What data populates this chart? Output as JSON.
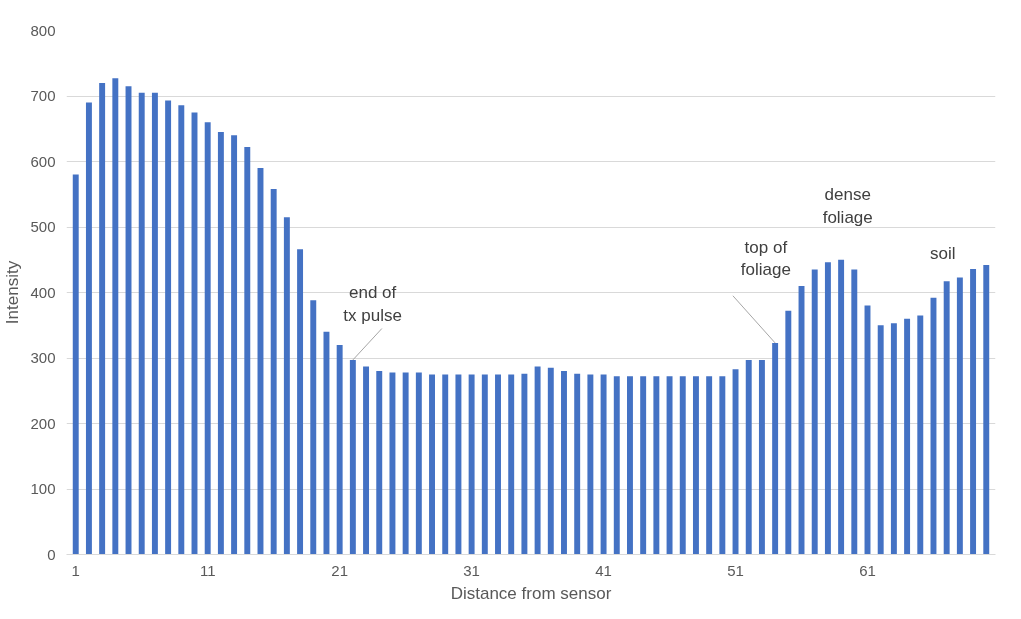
{
  "chart_data": {
    "type": "bar",
    "xlabel": "Distance from sensor",
    "ylabel": "Intensity",
    "x": [
      1,
      2,
      3,
      4,
      5,
      6,
      7,
      8,
      9,
      10,
      11,
      12,
      13,
      14,
      15,
      16,
      17,
      18,
      19,
      20,
      21,
      22,
      23,
      24,
      25,
      26,
      27,
      28,
      29,
      30,
      31,
      32,
      33,
      34,
      35,
      36,
      37,
      38,
      39,
      40,
      41,
      42,
      43,
      44,
      45,
      46,
      47,
      48,
      49,
      50,
      51,
      52,
      53,
      54,
      55,
      56,
      57,
      58,
      59,
      60,
      61,
      62,
      63,
      64,
      65,
      66,
      67,
      68,
      69,
      70
    ],
    "values": [
      580,
      690,
      720,
      727,
      715,
      705,
      705,
      693,
      686,
      675,
      660,
      645,
      640,
      622,
      590,
      558,
      515,
      466,
      388,
      340,
      320,
      297,
      287,
      280,
      278,
      278,
      278,
      275,
      275,
      275,
      275,
      275,
      275,
      275,
      276,
      287,
      285,
      280,
      276,
      275,
      275,
      272,
      272,
      272,
      272,
      272,
      272,
      272,
      272,
      272,
      283,
      297,
      297,
      323,
      372,
      410,
      435,
      446,
      450,
      435,
      380,
      350,
      353,
      360,
      365,
      392,
      417,
      423,
      436,
      442
    ],
    "color": "#4472c4",
    "xlim": [
      0.3,
      70.7
    ],
    "xticks": [
      1,
      11,
      21,
      31,
      41,
      51,
      61
    ],
    "ylim": [
      0,
      800
    ],
    "yticks": [
      0,
      100,
      200,
      300,
      400,
      500,
      600,
      700,
      800
    ],
    "grid": "y",
    "annotations": [
      {
        "text": "end of\ntx pulse",
        "x": 22,
        "y": 297
      },
      {
        "text": "top of\nfoliage",
        "x": 54,
        "y": 323
      },
      "dense\nfoliage",
      "soil"
    ]
  }
}
